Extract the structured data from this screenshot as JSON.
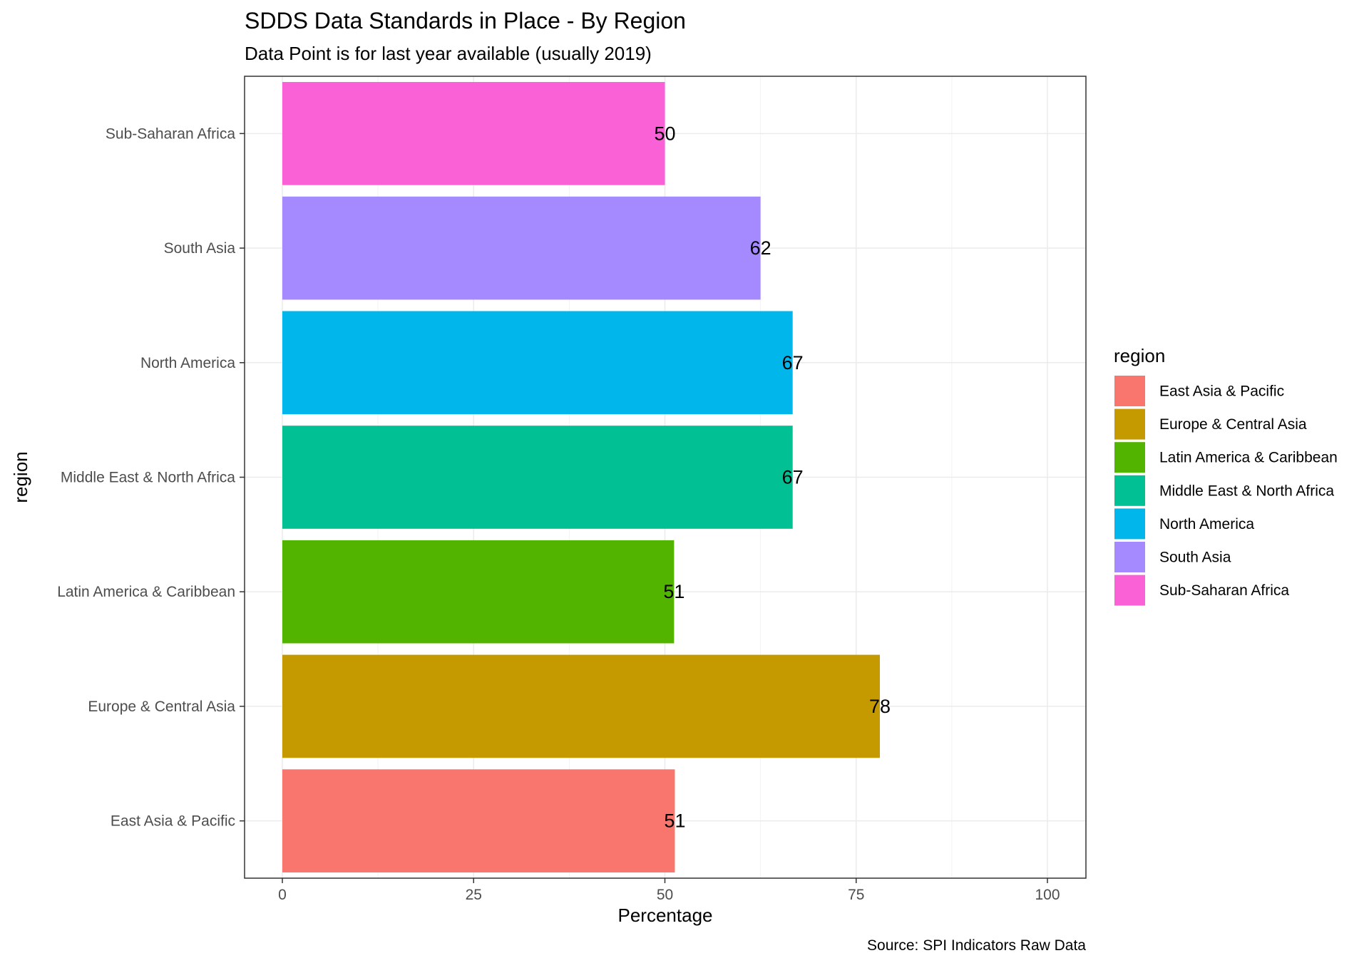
{
  "chart_data": {
    "type": "bar",
    "orientation": "horizontal",
    "title": "SDDS Data Standards in Place - By Region",
    "subtitle": "Data Point is for last year available (usually 2019)",
    "xlabel": "Percentage",
    "ylabel": "region",
    "xlim": [
      0,
      100
    ],
    "x_ticks": [
      0,
      25,
      50,
      75,
      100
    ],
    "x_tick_labels": [
      "0",
      "25",
      "50",
      "75",
      "100"
    ],
    "grid": true,
    "categories": [
      "East Asia & Pacific",
      "Europe & Central Asia",
      "Latin America & Caribbean",
      "Middle East & North Africa",
      "North America",
      "South Asia",
      "Sub-Saharan Africa"
    ],
    "values": [
      51.3,
      78.1,
      51.2,
      66.7,
      66.7,
      62.5,
      50.0
    ],
    "data_labels": [
      "51",
      "78",
      "51",
      "67",
      "67",
      "62",
      "50"
    ],
    "colors": [
      "#F8766D",
      "#C49A00",
      "#53B400",
      "#00C094",
      "#00B6EB",
      "#A58AFF",
      "#FB61D7"
    ],
    "legend": {
      "title": "region",
      "position": "right",
      "entries": [
        "East Asia & Pacific",
        "Europe & Central Asia",
        "Latin America & Caribbean",
        "Middle East & North Africa",
        "North America",
        "South Asia",
        "Sub-Saharan Africa"
      ]
    },
    "caption": "Source: SPI Indicators Raw Data"
  }
}
